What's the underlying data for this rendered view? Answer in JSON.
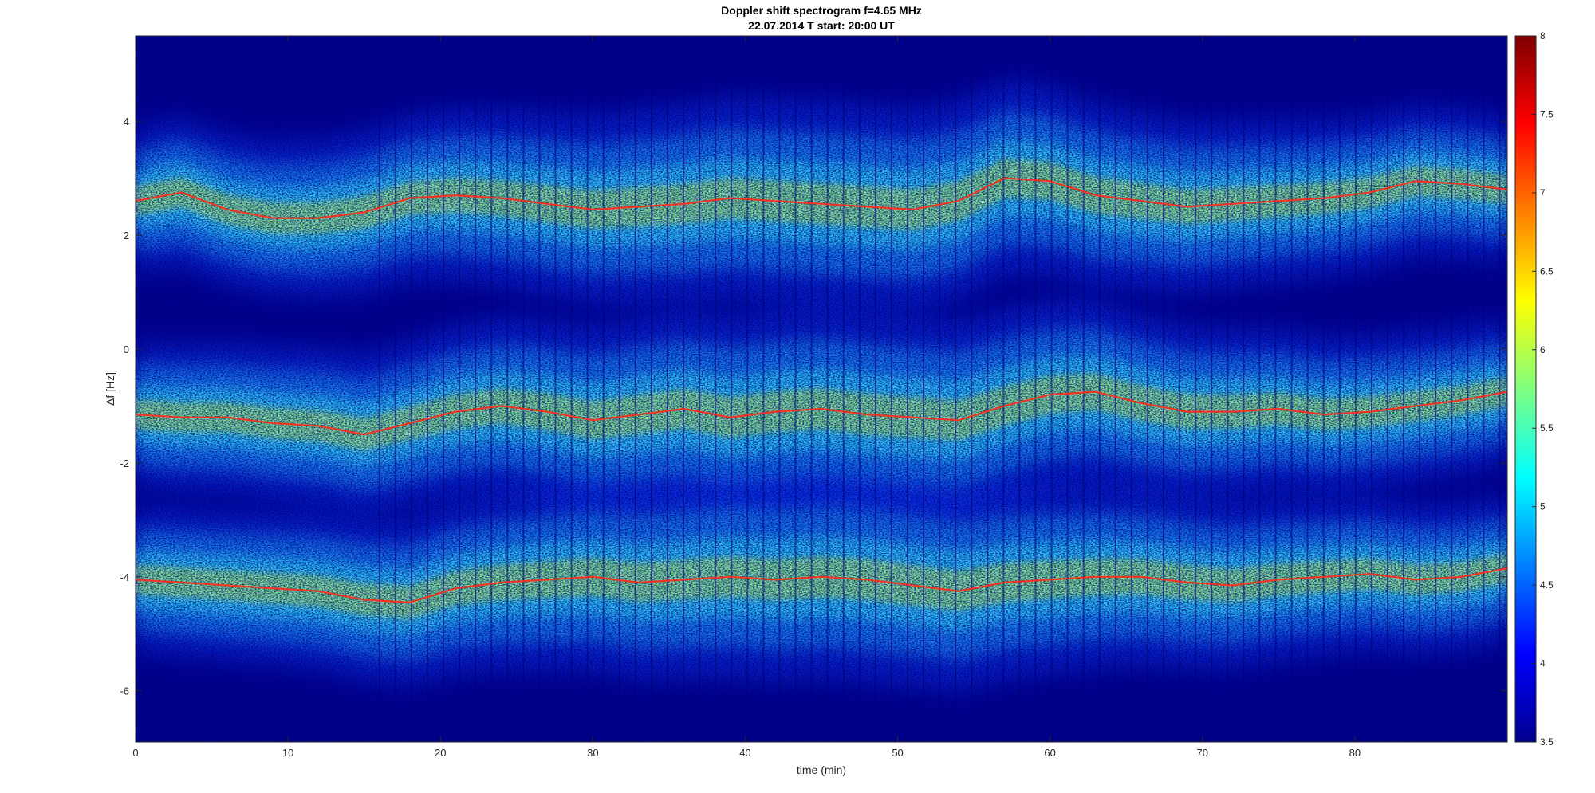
{
  "chart_data": {
    "type": "heatmap",
    "title": "Doppler shift spectrogram f=4.65 MHz",
    "subtitle": "22.07.2014   T start: 20:00 UT",
    "xlabel": "time (min)",
    "ylabel": "Δf [Hz]",
    "xlim": [
      0,
      90
    ],
    "ylim": [
      -6.9,
      5.5
    ],
    "xticks": [
      0,
      10,
      20,
      30,
      40,
      50,
      60,
      70,
      80
    ],
    "yticks": [
      -6,
      -4,
      -2,
      0,
      2,
      4
    ],
    "colorbar": {
      "colormap": "jet",
      "range": [
        3.5,
        8
      ],
      "ticks": [
        3.5,
        4,
        4.5,
        5,
        5.5,
        6,
        6.5,
        7,
        7.5,
        8
      ]
    },
    "background_color": "#00008f",
    "series": [
      {
        "x": [
          0,
          3,
          6,
          9,
          12,
          15,
          18,
          21,
          24,
          27,
          30,
          33,
          36,
          39,
          42,
          45,
          48,
          51,
          54,
          57,
          60,
          63,
          66,
          69,
          72,
          75,
          78,
          81,
          84,
          87,
          90
        ],
        "y": [
          2.6,
          2.75,
          2.45,
          2.3,
          2.3,
          2.4,
          2.65,
          2.7,
          2.65,
          2.55,
          2.45,
          2.5,
          2.55,
          2.65,
          2.6,
          2.55,
          2.5,
          2.45,
          2.6,
          3.0,
          2.95,
          2.7,
          2.6,
          2.5,
          2.55,
          2.6,
          2.65,
          2.75,
          2.95,
          2.9,
          2.8
        ]
      },
      {
        "x": [
          0,
          3,
          6,
          9,
          12,
          15,
          18,
          21,
          24,
          27,
          30,
          33,
          36,
          39,
          42,
          45,
          48,
          51,
          54,
          57,
          60,
          63,
          66,
          69,
          72,
          75,
          78,
          81,
          84,
          87,
          90
        ],
        "y": [
          -1.15,
          -1.2,
          -1.2,
          -1.3,
          -1.35,
          -1.5,
          -1.3,
          -1.1,
          -1.0,
          -1.1,
          -1.25,
          -1.15,
          -1.05,
          -1.2,
          -1.1,
          -1.05,
          -1.15,
          -1.2,
          -1.25,
          -1.0,
          -0.8,
          -0.75,
          -0.95,
          -1.1,
          -1.1,
          -1.05,
          -1.15,
          -1.1,
          -1.0,
          -0.9,
          -0.75
        ]
      },
      {
        "x": [
          0,
          3,
          6,
          9,
          12,
          15,
          18,
          21,
          24,
          27,
          30,
          33,
          36,
          39,
          42,
          45,
          48,
          51,
          54,
          57,
          60,
          63,
          66,
          69,
          72,
          75,
          78,
          81,
          84,
          87,
          90
        ],
        "y": [
          -4.05,
          -4.1,
          -4.15,
          -4.2,
          -4.25,
          -4.4,
          -4.45,
          -4.2,
          -4.1,
          -4.05,
          -4.0,
          -4.1,
          -4.05,
          -4.0,
          -4.05,
          -4.0,
          -4.05,
          -4.15,
          -4.25,
          -4.1,
          -4.05,
          -4.0,
          -4.0,
          -4.1,
          -4.15,
          -4.05,
          -4.0,
          -3.95,
          -4.05,
          -4.0,
          -3.85
        ]
      }
    ]
  }
}
